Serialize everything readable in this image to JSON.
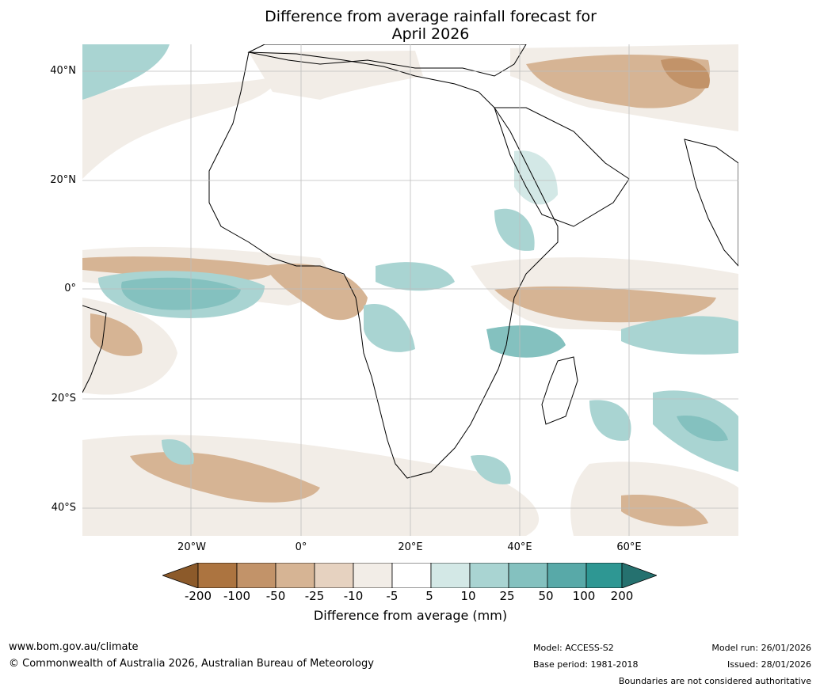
{
  "title": {
    "line1": "Difference from average rainfall forecast for",
    "line2": "April 2026"
  },
  "map": {
    "region": "Africa and Indian Ocean",
    "latitude_labels": [
      "40°N",
      "20°N",
      "0°",
      "20°S",
      "40°S"
    ],
    "longitude_labels": [
      "20°W",
      "0°",
      "20°E",
      "40°E",
      "60°E"
    ],
    "gridlines": true
  },
  "colorbar": {
    "label": "Difference from average (mm)",
    "ticks": [
      "-200",
      "-100",
      "-50",
      "-25",
      "-10",
      "-5",
      "5",
      "10",
      "25",
      "50",
      "100",
      "200"
    ],
    "colors": [
      "#8c5a2a",
      "#ac7440",
      "#c29369",
      "#d6b494",
      "#e6d2c0",
      "#f2ede7",
      "#ffffff",
      "#d3e8e6",
      "#a9d4d2",
      "#84c1bf",
      "#58a9a8",
      "#2e9793",
      "#25716f"
    ]
  },
  "footer": {
    "website": "www.bom.gov.au/climate",
    "copyright": "© Commonwealth of Australia 2026, Australian Bureau of Meteorology",
    "model": "Model: ACCESS-S2",
    "base_period": "Base period: 1981-2018",
    "model_run": "Model run: 26/01/2026",
    "issued": "Issued: 28/01/2026",
    "disclaimer": "Boundaries are not considered authoritative"
  }
}
